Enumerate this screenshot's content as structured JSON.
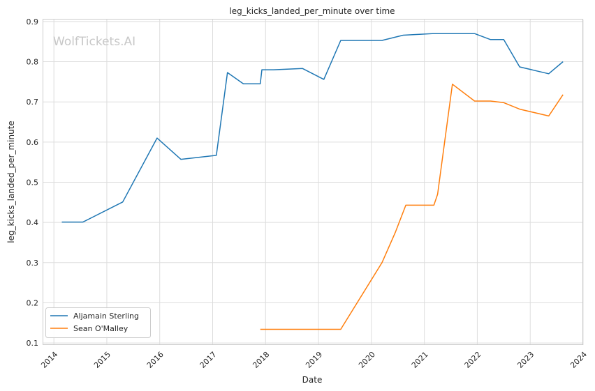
{
  "chart_data": {
    "type": "line",
    "title": "leg_kicks_landed_per_minute over time",
    "xlabel": "Date",
    "ylabel": "leg_kicks_landed_per_minute",
    "watermark": "WolfTickets.AI",
    "xlim": [
      2013.8,
      2024.0
    ],
    "ylim": [
      0.095,
      0.905
    ],
    "x_ticks": [
      2014,
      2015,
      2016,
      2017,
      2018,
      2019,
      2020,
      2021,
      2022,
      2023,
      2024
    ],
    "y_ticks": [
      0.1,
      0.2,
      0.3,
      0.4,
      0.5,
      0.6,
      0.7,
      0.8,
      0.9
    ],
    "grid": true,
    "legend_position": "lower-left",
    "series": [
      {
        "name": "Aljamain Sterling",
        "color": "#1f77b4",
        "points": [
          [
            2014.15,
            0.401
          ],
          [
            2014.55,
            0.401
          ],
          [
            2015.3,
            0.451
          ],
          [
            2015.95,
            0.61
          ],
          [
            2016.4,
            0.557
          ],
          [
            2017.07,
            0.567
          ],
          [
            2017.28,
            0.773
          ],
          [
            2017.58,
            0.745
          ],
          [
            2017.9,
            0.745
          ],
          [
            2017.93,
            0.78
          ],
          [
            2018.15,
            0.78
          ],
          [
            2018.7,
            0.783
          ],
          [
            2019.1,
            0.756
          ],
          [
            2019.42,
            0.853
          ],
          [
            2020.2,
            0.853
          ],
          [
            2020.6,
            0.866
          ],
          [
            2021.15,
            0.87
          ],
          [
            2021.95,
            0.87
          ],
          [
            2022.25,
            0.855
          ],
          [
            2022.5,
            0.855
          ],
          [
            2022.8,
            0.787
          ],
          [
            2023.35,
            0.77
          ],
          [
            2023.62,
            0.8
          ]
        ]
      },
      {
        "name": "Sean O'Malley",
        "color": "#ff7f0e",
        "points": [
          [
            2017.9,
            0.134
          ],
          [
            2019.42,
            0.134
          ],
          [
            2020.2,
            0.3
          ],
          [
            2020.45,
            0.375
          ],
          [
            2020.65,
            0.443
          ],
          [
            2021.18,
            0.443
          ],
          [
            2021.25,
            0.47
          ],
          [
            2021.53,
            0.744
          ],
          [
            2021.95,
            0.702
          ],
          [
            2022.25,
            0.702
          ],
          [
            2022.5,
            0.698
          ],
          [
            2022.8,
            0.682
          ],
          [
            2023.35,
            0.665
          ],
          [
            2023.62,
            0.718
          ]
        ]
      }
    ]
  }
}
